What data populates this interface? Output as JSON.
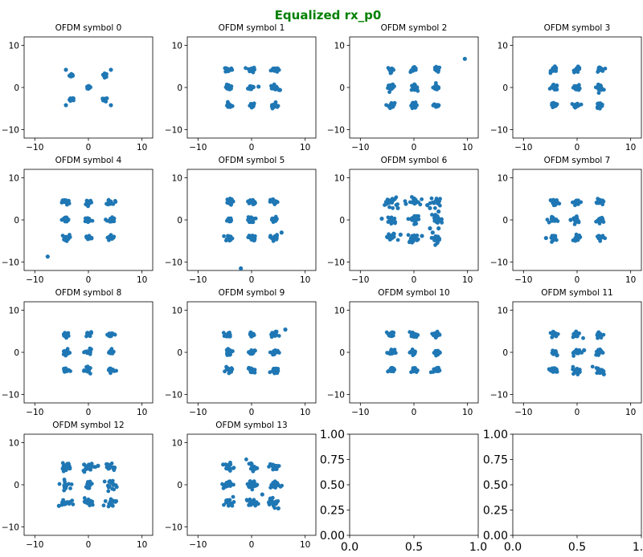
{
  "figure": {
    "title": "Equalized rx_p0",
    "title_color": "#008000",
    "marker_color": "#1f77b4"
  },
  "chart_data": {
    "type": "scatter",
    "layout": {
      "rows": 4,
      "cols": 4
    },
    "xlim": [
      -12,
      12
    ],
    "ylim": [
      -12,
      12
    ],
    "xticks": [
      -10,
      0,
      10
    ],
    "yticks": [
      -10,
      0,
      10
    ],
    "clusters_16qam": [
      -4.24,
      0,
      4.24
    ],
    "subplots": [
      {
        "title": "OFDM symbol 0",
        "spread": 0.22,
        "clusters": [
          [
            -3.1,
            2.9
          ],
          [
            3.1,
            2.9
          ],
          [
            -3.1,
            -2.9
          ],
          [
            3.1,
            -2.9
          ],
          [
            0,
            0
          ]
        ],
        "points": [
          [
            -4.2,
            4.2
          ],
          [
            4.2,
            4.2
          ],
          [
            -4.2,
            -4.2
          ],
          [
            4.2,
            -4.2
          ]
        ]
      },
      {
        "title": "OFDM symbol 1",
        "spread": 0.32,
        "points": [
          [
            1.3,
            0.2
          ],
          [
            5.3,
            -0.6
          ]
        ]
      },
      {
        "title": "OFDM symbol 2",
        "spread": 0.32,
        "points": [
          [
            9.5,
            6.8
          ]
        ]
      },
      {
        "title": "OFDM symbol 3",
        "spread": 0.32,
        "points": []
      },
      {
        "title": "OFDM symbol 4",
        "spread": 0.35,
        "points": [
          [
            -7.6,
            -8.7
          ]
        ]
      },
      {
        "title": "OFDM symbol 5",
        "spread": 0.35,
        "points": [
          [
            5.6,
            -3.0
          ],
          [
            -2.0,
            -11.5
          ]
        ]
      },
      {
        "title": "OFDM symbol 6",
        "spread": 0.55,
        "points": [
          [
            -6.0,
            0.3
          ],
          [
            -3.0,
            2.8
          ],
          [
            2.5,
            3.5
          ],
          [
            3.0,
            2.8
          ],
          [
            -2.5,
            -3.5
          ],
          [
            3.5,
            -3.0
          ],
          [
            -1.5,
            3.8
          ],
          [
            1.5,
            -3.8
          ],
          [
            3.0,
            -2.0
          ],
          [
            4.6,
            2.0
          ],
          [
            4.6,
            -2.0
          ],
          [
            4.0,
            1.2
          ]
        ]
      },
      {
        "title": "OFDM symbol 7",
        "spread": 0.35,
        "points": [
          [
            -1.2,
            0.0
          ],
          [
            -5.8,
            -4.3
          ]
        ]
      },
      {
        "title": "OFDM symbol 8",
        "spread": 0.32,
        "points": []
      },
      {
        "title": "OFDM symbol 9",
        "spread": 0.32,
        "points": [
          [
            6.3,
            5.4
          ]
        ]
      },
      {
        "title": "OFDM symbol 10",
        "spread": 0.32,
        "points": []
      },
      {
        "title": "OFDM symbol 11",
        "spread": 0.4,
        "points": [
          [
            -5.2,
            -4.0
          ],
          [
            1.3,
            0.5
          ],
          [
            5.0,
            -5.2
          ]
        ]
      },
      {
        "title": "OFDM symbol 12",
        "spread": 0.5,
        "points": [
          [
            1.8,
            4.5
          ],
          [
            -5.5,
            -5.0
          ],
          [
            -0.8,
            4.8
          ]
        ]
      },
      {
        "title": "OFDM symbol 13",
        "spread": 0.5,
        "points": [
          [
            2.0,
            -2.3
          ],
          [
            5.4,
            -0.4
          ],
          [
            5.0,
            -5.6
          ],
          [
            -5.3,
            4.8
          ]
        ]
      },
      {
        "title": "",
        "empty": true
      },
      {
        "title": "",
        "empty": true
      }
    ],
    "empty_axes_ticks": [
      "0.00",
      "0.25",
      "0.50",
      "0.75",
      "1.00"
    ],
    "empty_axes_xticks": [
      "0.0",
      "0.5",
      "1.0"
    ],
    "grid": false,
    "legend": "none"
  }
}
